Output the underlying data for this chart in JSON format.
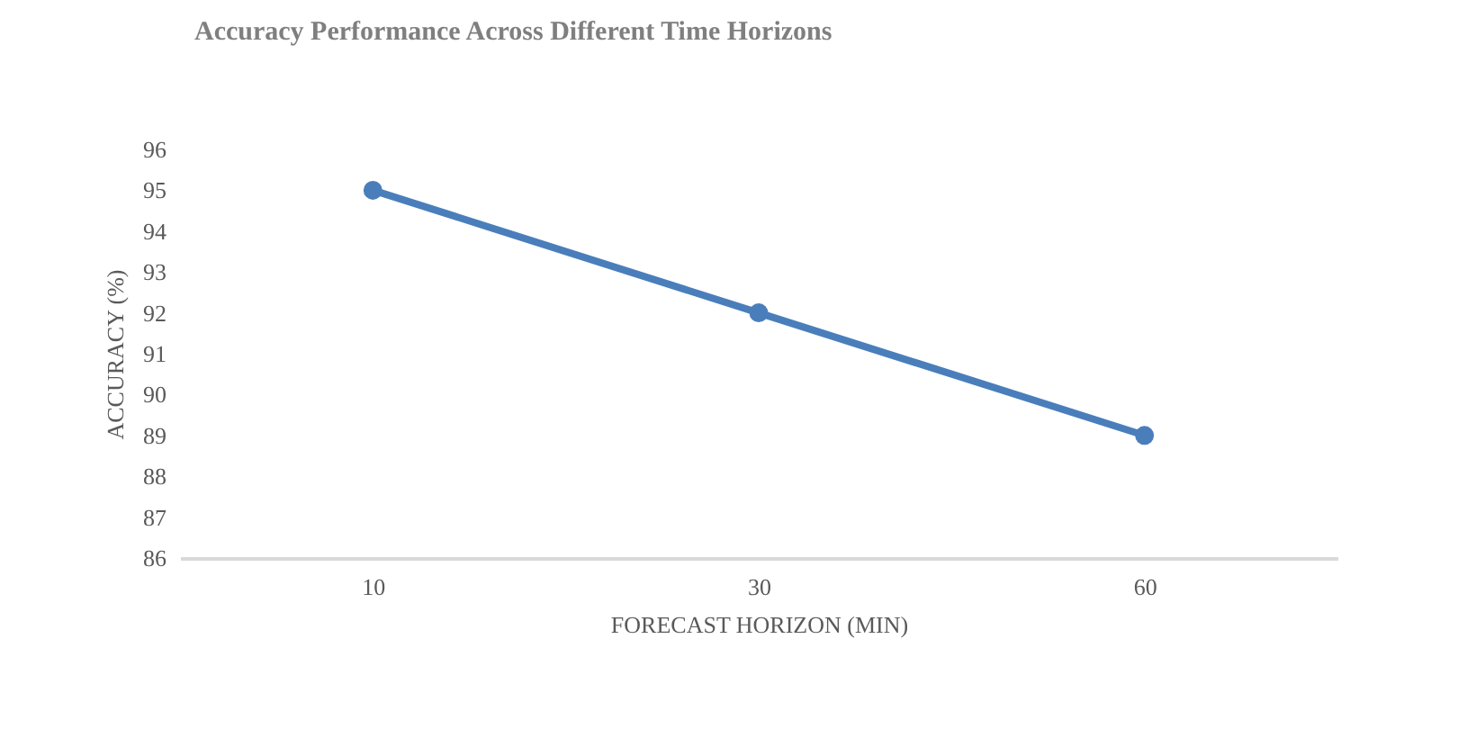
{
  "chart_data": {
    "type": "line",
    "title": "Accuracy Performance Across Different Time Horizons",
    "xlabel": "FORECAST HORIZON (MIN)",
    "ylabel": "ACCURACY (%)",
    "categories": [
      "10",
      "30",
      "60"
    ],
    "series": [
      {
        "color": "#4a7ebb",
        "values": [
          95,
          92,
          89
        ]
      }
    ],
    "ylim": [
      86,
      96
    ],
    "yticks": [
      86,
      87,
      88,
      89,
      90,
      91,
      92,
      93,
      94,
      95,
      96
    ],
    "grid": false,
    "legend": false,
    "marker": "circle"
  }
}
